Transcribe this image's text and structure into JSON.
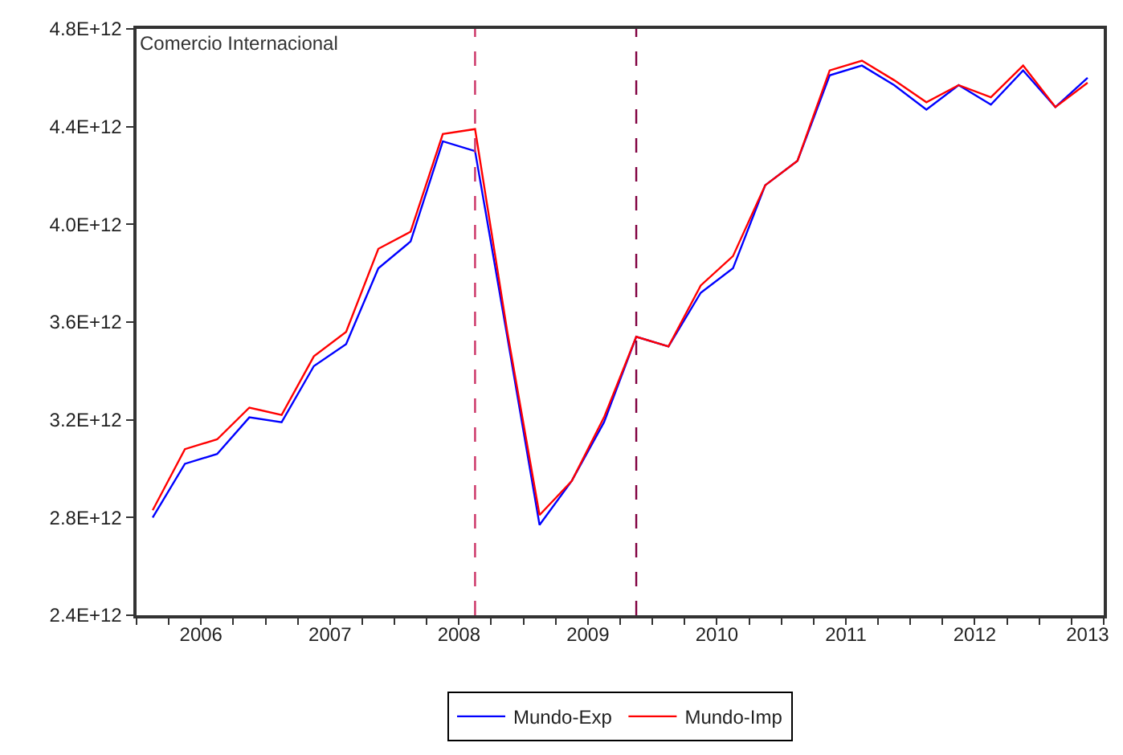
{
  "chart_data": {
    "type": "line",
    "x": [
      2006.125,
      2006.375,
      2006.625,
      2006.875,
      2007.125,
      2007.375,
      2007.625,
      2007.875,
      2008.125,
      2008.375,
      2008.625,
      2008.875,
      2009.125,
      2009.375,
      2009.625,
      2009.875,
      2010.125,
      2010.375,
      2010.625,
      2010.875,
      2011.125,
      2011.375,
      2011.625,
      2011.875,
      2012.125,
      2012.375,
      2012.625,
      2012.875,
      2013.125,
      2013.375
    ],
    "series": [
      {
        "name": "Mundo-Exp",
        "color": "#0000ff",
        "values": [
          2800000000000.0,
          3020000000000.0,
          3060000000000.0,
          3210000000000.0,
          3190000000000.0,
          3420000000000.0,
          3510000000000.0,
          3820000000000.0,
          3930000000000.0,
          4340000000000.0,
          4300000000000.0,
          3540000000000.0,
          2770000000000.0,
          2950000000000.0,
          3190000000000.0,
          3540000000000.0,
          3500000000000.0,
          3720000000000.0,
          3820000000000.0,
          4160000000000.0,
          4260000000000.0,
          4610000000000.0,
          4650000000000.0,
          4570000000000.0,
          4470000000000.0,
          4570000000000.0,
          4490000000000.0,
          4630000000000.0,
          4480000000000.0,
          4600000000000.0
        ]
      },
      {
        "name": "Mundo-Imp",
        "color": "#ff0000",
        "values": [
          2830000000000.0,
          3080000000000.0,
          3120000000000.0,
          3250000000000.0,
          3220000000000.0,
          3460000000000.0,
          3560000000000.0,
          3900000000000.0,
          3970000000000.0,
          4370000000000.0,
          4390000000000.0,
          3560000000000.0,
          2810000000000.0,
          2950000000000.0,
          3210000000000.0,
          3540000000000.0,
          3500000000000.0,
          3750000000000.0,
          3870000000000.0,
          4160000000000.0,
          4260000000000.0,
          4630000000000.0,
          4670000000000.0,
          4590000000000.0,
          4500000000000.0,
          4570000000000.0,
          4520000000000.0,
          4650000000000.0,
          4480000000000.0,
          4580000000000.0
        ]
      }
    ],
    "xlim": [
      2006,
      2013.5
    ],
    "xticks": [
      {
        "value": 2006.5,
        "label": "2006"
      },
      {
        "value": 2007.5,
        "label": "2007"
      },
      {
        "value": 2008.5,
        "label": "2008"
      },
      {
        "value": 2009.5,
        "label": "2009"
      },
      {
        "value": 2010.5,
        "label": "2010"
      },
      {
        "value": 2011.5,
        "label": "2011"
      },
      {
        "value": 2012.5,
        "label": "2012"
      },
      {
        "value": 2013.375,
        "label": "2013"
      }
    ],
    "ylim": [
      2400000000000.0,
      4800000000000.0
    ],
    "yticks": [
      {
        "value": 2400000000000.0,
        "label": "2.4E+12"
      },
      {
        "value": 2800000000000.0,
        "label": "2.8E+12"
      },
      {
        "value": 3200000000000.0,
        "label": "3.2E+12"
      },
      {
        "value": 3600000000000.0,
        "label": "3.6E+12"
      },
      {
        "value": 4000000000000.0,
        "label": "4.0E+12"
      },
      {
        "value": 4400000000000.0,
        "label": "4.4E+12"
      },
      {
        "value": 4800000000000.0,
        "label": "4.8E+12"
      }
    ],
    "ref_lines": [
      {
        "axis": "x",
        "value": 2008.625,
        "color": "#cc3366",
        "line_style": "dashed"
      },
      {
        "axis": "x",
        "value": 2009.875,
        "color": "#800040",
        "line_style": "dashed"
      }
    ],
    "annotations": [
      "Comercio Internacional"
    ],
    "legend": "bottom",
    "marker": "none",
    "line_style": "solid"
  }
}
